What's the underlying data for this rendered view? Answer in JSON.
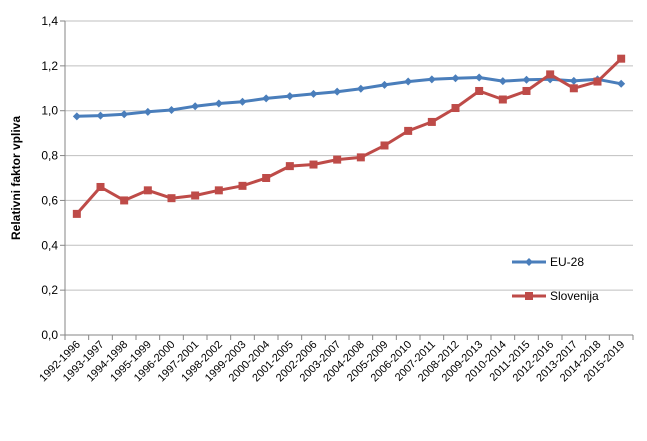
{
  "chart_data": {
    "type": "line",
    "title": "",
    "xlabel": "",
    "ylabel": "Relativni faktor vpliva",
    "ylim": [
      0,
      1.4
    ],
    "ytick_step": 0.2,
    "grid": true,
    "legend_position": "right",
    "categories": [
      "1992-1996",
      "1993-1997",
      "1994-1998",
      "1995-1999",
      "1996-2000",
      "1997-2001",
      "1998-2002",
      "1999-2003",
      "2000-2004",
      "2001-2005",
      "2002-2006",
      "2003-2007",
      "2004-2008",
      "2005-2009",
      "2006-2010",
      "2007-2011",
      "2008-2012",
      "2009-2013",
      "2010-2014",
      "2011-2015",
      "2012-2016",
      "2013-2017",
      "2014-2018",
      "2015-2019"
    ],
    "y_tick_labels": [
      "0,0",
      "0,2",
      "0,4",
      "0,6",
      "0,8",
      "1,0",
      "1,2",
      "1,4"
    ],
    "series": [
      {
        "name": "EU-28",
        "color": "#4a7ebb",
        "marker": "diamond",
        "values": [
          0.975,
          0.978,
          0.984,
          0.995,
          1.003,
          1.02,
          1.032,
          1.04,
          1.055,
          1.065,
          1.075,
          1.085,
          1.098,
          1.115,
          1.13,
          1.14,
          1.145,
          1.148,
          1.132,
          1.138,
          1.14,
          1.133,
          1.14,
          1.12
        ]
      },
      {
        "name": "Slovenija",
        "color": "#be4b48",
        "marker": "square",
        "values": [
          0.54,
          0.66,
          0.6,
          0.645,
          0.61,
          0.622,
          0.645,
          0.665,
          0.7,
          0.753,
          0.76,
          0.782,
          0.792,
          0.845,
          0.91,
          0.95,
          1.012,
          1.088,
          1.05,
          1.088,
          1.162,
          1.1,
          1.13,
          1.232
        ]
      }
    ]
  }
}
